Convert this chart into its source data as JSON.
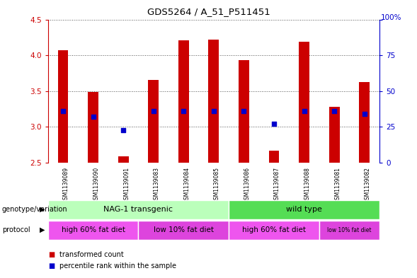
{
  "title": "GDS5264 / A_51_P511451",
  "samples": [
    "GSM1139089",
    "GSM1139090",
    "GSM1139091",
    "GSM1139083",
    "GSM1139084",
    "GSM1139085",
    "GSM1139086",
    "GSM1139087",
    "GSM1139088",
    "GSM1139081",
    "GSM1139082"
  ],
  "transformed_count": [
    4.07,
    3.49,
    2.59,
    3.66,
    4.21,
    4.22,
    3.93,
    2.67,
    4.19,
    3.28,
    3.63
  ],
  "percentile_rank": [
    3.22,
    3.14,
    2.95,
    3.22,
    3.22,
    3.22,
    3.22,
    3.04,
    3.22,
    3.22,
    3.18
  ],
  "ylim": [
    2.5,
    4.5
  ],
  "yticks_left": [
    2.5,
    3.0,
    3.5,
    4.0,
    4.5
  ],
  "yticks_right": [
    0,
    25,
    50,
    75,
    100
  ],
  "bar_color": "#cc0000",
  "dot_color": "#0000cc",
  "bar_width": 0.35,
  "dot_size": 25,
  "grid_color": "#555555",
  "bg_color": "#ffffff",
  "genotype_colors": [
    "#bbffbb",
    "#55dd55"
  ],
  "genotype_row": [
    {
      "label": "NAG-1 transgenic",
      "start": 0,
      "end": 6
    },
    {
      "label": "wild type",
      "start": 6,
      "end": 11
    }
  ],
  "protocol_colors": [
    "#ee55ee",
    "#dd44dd",
    "#ee55ee",
    "#dd44dd"
  ],
  "protocol_row": [
    {
      "label": "high 60% fat diet",
      "start": 0,
      "end": 3
    },
    {
      "label": "low 10% fat diet",
      "start": 3,
      "end": 6
    },
    {
      "label": "high 60% fat diet",
      "start": 6,
      "end": 9
    },
    {
      "label": "low 10% fat diet",
      "start": 9,
      "end": 11
    }
  ],
  "genotype_label": "genotype/variation",
  "protocol_label": "protocol",
  "legend_items": [
    {
      "color": "#cc0000",
      "label": "transformed count"
    },
    {
      "color": "#0000cc",
      "label": "percentile rank within the sample"
    }
  ],
  "tick_color_left": "#cc0000",
  "tick_color_right": "#0000cc"
}
